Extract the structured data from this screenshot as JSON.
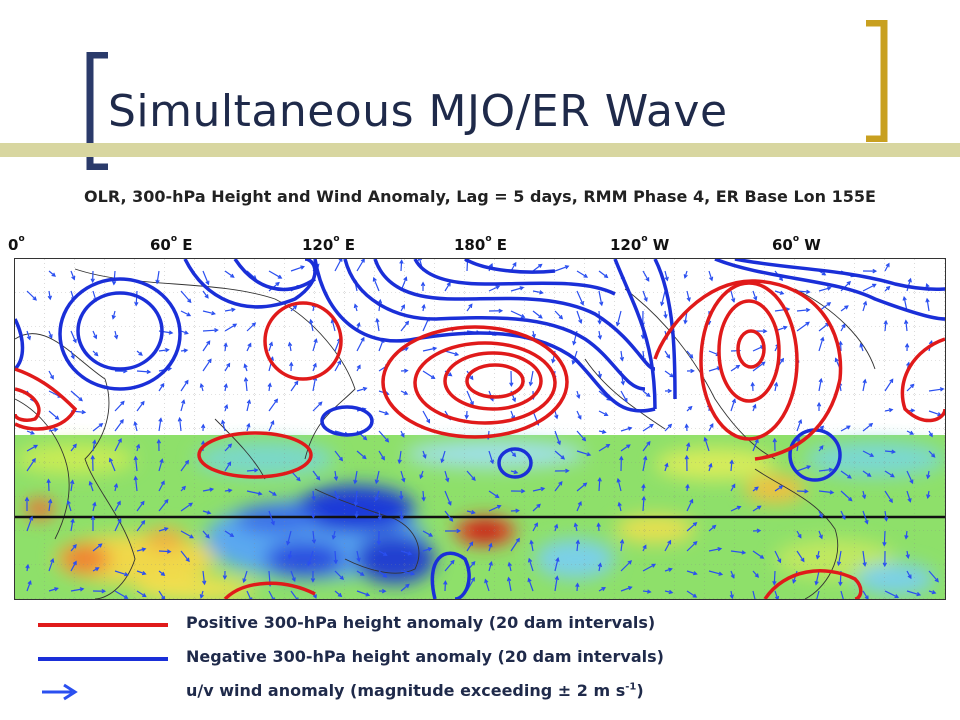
{
  "slide": {
    "title": "Simultaneous MJO/ER Wave",
    "subtitle": "OLR, 300-hPa Height and Wind Anomaly, Lag = 5 days, RMM Phase 4, ER Base Lon 155E"
  },
  "map": {
    "longitude_labels": [
      {
        "deg": "0",
        "hem": ""
      },
      {
        "deg": "60",
        "hem": " E"
      },
      {
        "deg": "120",
        "hem": " E"
      },
      {
        "deg": "180",
        "hem": " E"
      },
      {
        "deg": "120",
        "hem": " W"
      },
      {
        "deg": "60",
        "hem": " W"
      }
    ],
    "colors": {
      "positive_contour": "#e01a1a",
      "negative_contour": "#1a2fd8",
      "wind_vector": "#2a4ff0",
      "bracket": "#c8a020",
      "bracket_left": "#2a3a6a"
    }
  },
  "legend": {
    "positive": {
      "label": "Positive 300-hPa height anomaly (20 dam intervals)",
      "color": "#e01a1a"
    },
    "negative": {
      "label": "Negative 300-hPa height anomaly (20 dam intervals)",
      "color": "#1a2fd8"
    },
    "wind": {
      "label_pre": "u/v wind anomaly (magnitude exceeding ± 2 m s",
      "label_sup": "-1",
      "label_post": ")",
      "color": "#2a4ff0",
      "icon": "arrow-right-icon"
    }
  }
}
